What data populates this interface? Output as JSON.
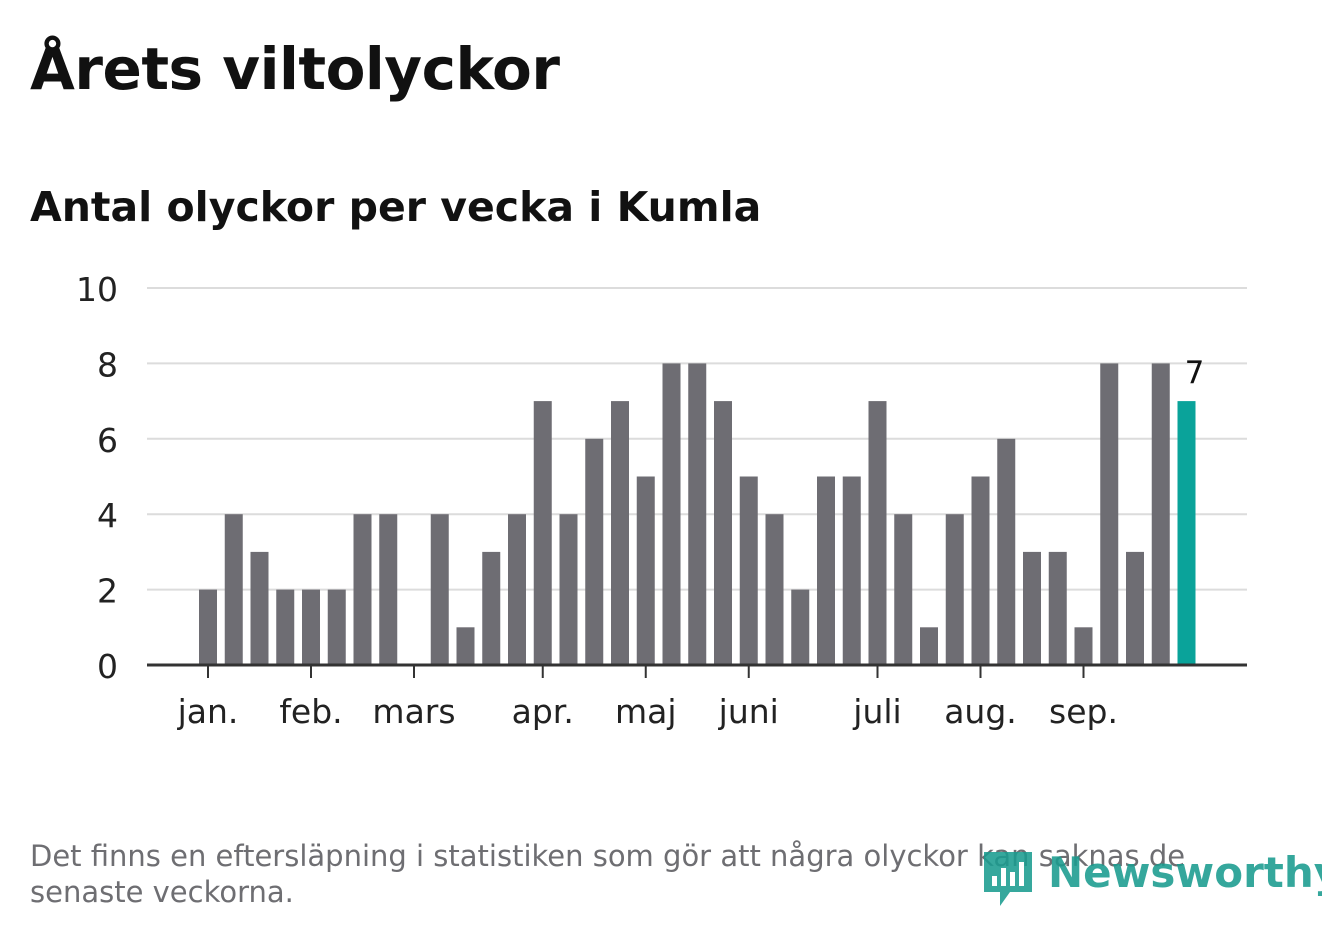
{
  "title": "Årets viltolyckor",
  "subtitle": "Antal olyckor per vecka i Kumla",
  "footnote": "Det finns en eftersläpning i statistiken som gör att några olyckor kan saknas de senaste veckorna.",
  "logo": {
    "text": "Newsworthy",
    "icon": "newsworthy-chart-bubble-icon",
    "color": "#1a9c8f"
  },
  "colors": {
    "bar": "#6e6d73",
    "highlight": "#0aa39a",
    "grid": "#dcdcdc",
    "axis": "#333333"
  },
  "chart_data": {
    "type": "bar",
    "title": "Antal olyckor per vecka i Kumla",
    "xlabel": "",
    "ylabel": "",
    "ylim": [
      0,
      10
    ],
    "yticks": [
      0,
      2,
      4,
      6,
      8,
      10
    ],
    "grid": true,
    "weeks": [
      1,
      2,
      3,
      4,
      5,
      6,
      7,
      8,
      9,
      10,
      11,
      12,
      13,
      14,
      15,
      16,
      17,
      18,
      19,
      20,
      21,
      22,
      23,
      24,
      25,
      26,
      27,
      28,
      29,
      30,
      31,
      32,
      33,
      34,
      35,
      36,
      37,
      38,
      39
    ],
    "values": [
      2,
      4,
      3,
      2,
      2,
      2,
      4,
      4,
      0,
      4,
      1,
      3,
      4,
      7,
      4,
      6,
      7,
      5,
      8,
      8,
      7,
      5,
      4,
      2,
      5,
      5,
      7,
      4,
      1,
      4,
      5,
      6,
      3,
      3,
      1,
      8,
      3,
      8,
      7
    ],
    "month_ticks": [
      {
        "label": "jan.",
        "week": 1
      },
      {
        "label": "feb.",
        "week": 5
      },
      {
        "label": "mars",
        "week": 9
      },
      {
        "label": "apr.",
        "week": 14
      },
      {
        "label": "maj",
        "week": 18
      },
      {
        "label": "juni",
        "week": 22
      },
      {
        "label": "juli",
        "week": 27
      },
      {
        "label": "aug.",
        "week": 31
      },
      {
        "label": "sep.",
        "week": 35
      }
    ],
    "highlight_index": 38,
    "highlight_label": "7"
  }
}
